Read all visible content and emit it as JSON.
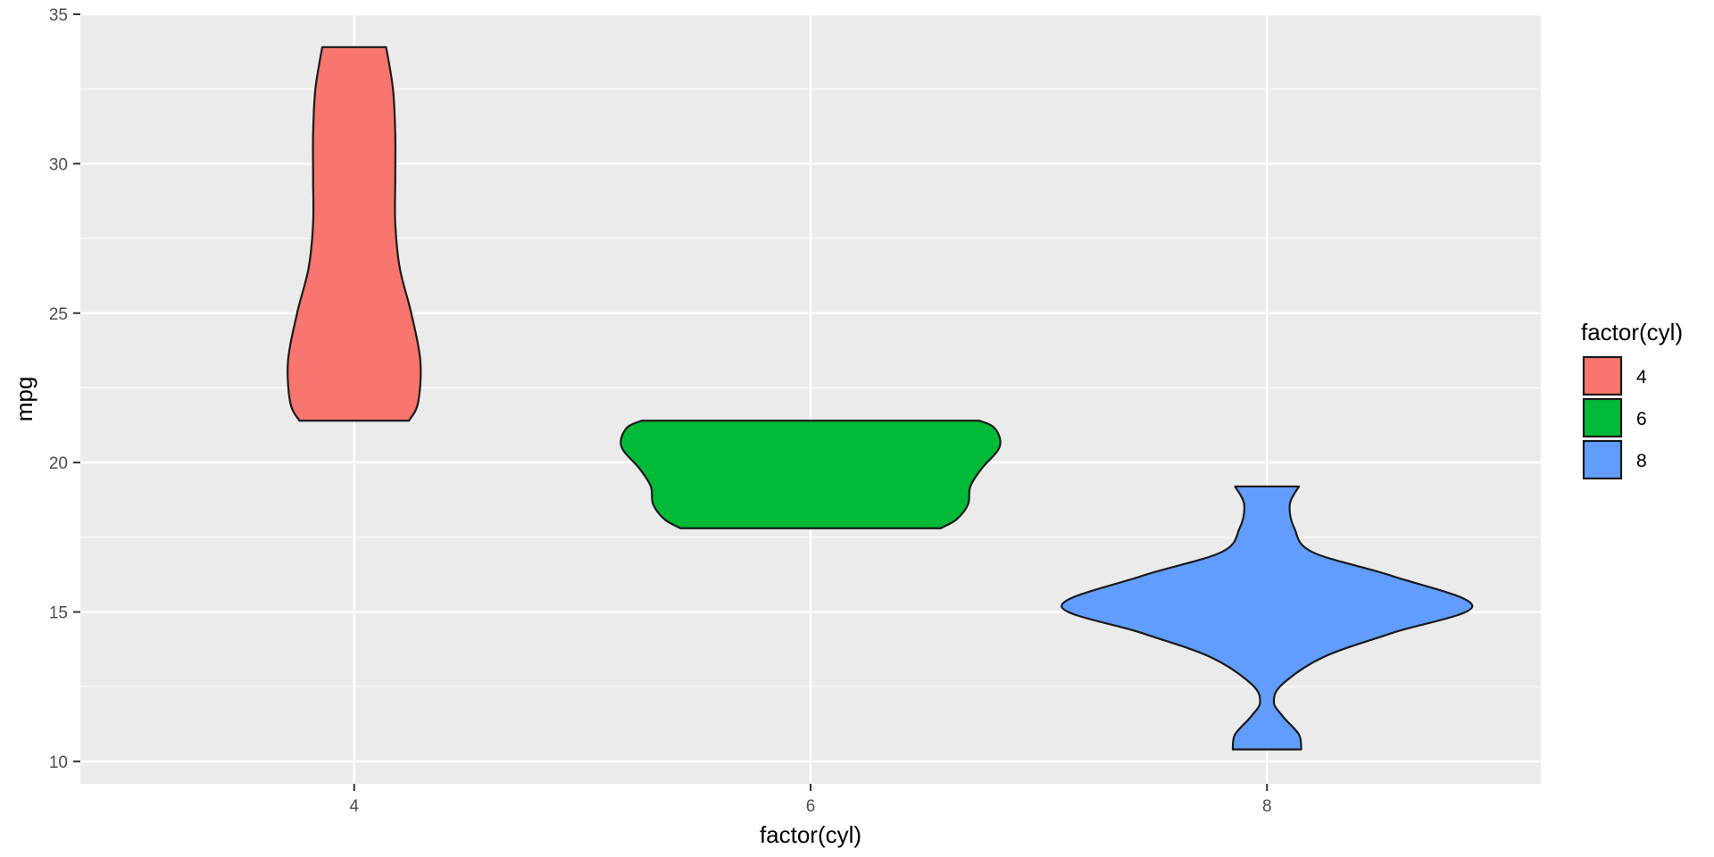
{
  "chart_data": {
    "type": "violin",
    "xlabel": "factor(cyl)",
    "ylabel": "mpg",
    "categories": [
      "4",
      "6",
      "8"
    ],
    "ylim": [
      9.25,
      35
    ],
    "yticks": [
      10,
      15,
      20,
      25,
      30,
      35
    ],
    "grid": true,
    "legend": {
      "title": "factor(cyl)",
      "position": "right",
      "items": [
        "4",
        "6",
        "8"
      ]
    },
    "colors": {
      "4": "#F8766D",
      "6": "#00BA38",
      "8": "#619CFF"
    },
    "panel_background": "#EBEBEB",
    "series": [
      {
        "category": "4",
        "y_range": [
          21.4,
          33.9
        ],
        "density_profile": [
          {
            "y": 21.4,
            "w": 0.24
          },
          {
            "y": 22.0,
            "w": 0.28
          },
          {
            "y": 23.4,
            "w": 0.29
          },
          {
            "y": 25.0,
            "w": 0.25
          },
          {
            "y": 26.5,
            "w": 0.2
          },
          {
            "y": 28.0,
            "w": 0.18
          },
          {
            "y": 29.5,
            "w": 0.18
          },
          {
            "y": 31.0,
            "w": 0.18
          },
          {
            "y": 32.5,
            "w": 0.17
          },
          {
            "y": 33.9,
            "w": 0.14
          }
        ]
      },
      {
        "category": "6",
        "y_range": [
          17.8,
          21.4
        ],
        "density_profile": [
          {
            "y": 17.8,
            "w": 0.57
          },
          {
            "y": 18.1,
            "w": 0.64
          },
          {
            "y": 18.6,
            "w": 0.69
          },
          {
            "y": 19.2,
            "w": 0.7
          },
          {
            "y": 19.8,
            "w": 0.75
          },
          {
            "y": 20.4,
            "w": 0.82
          },
          {
            "y": 20.8,
            "w": 0.83
          },
          {
            "y": 21.2,
            "w": 0.8
          },
          {
            "y": 21.4,
            "w": 0.74
          }
        ]
      },
      {
        "category": "8",
        "y_range": [
          10.4,
          19.2
        ],
        "density_profile": [
          {
            "y": 10.4,
            "w": 0.15
          },
          {
            "y": 10.9,
            "w": 0.14
          },
          {
            "y": 11.5,
            "w": 0.07
          },
          {
            "y": 12.0,
            "w": 0.03
          },
          {
            "y": 12.6,
            "w": 0.07
          },
          {
            "y": 13.5,
            "w": 0.25
          },
          {
            "y": 14.3,
            "w": 0.55
          },
          {
            "y": 15.2,
            "w": 0.9
          },
          {
            "y": 16.2,
            "w": 0.55
          },
          {
            "y": 17.0,
            "w": 0.2
          },
          {
            "y": 17.8,
            "w": 0.12
          },
          {
            "y": 18.6,
            "w": 0.1
          },
          {
            "y": 19.2,
            "w": 0.14
          }
        ]
      }
    ]
  }
}
